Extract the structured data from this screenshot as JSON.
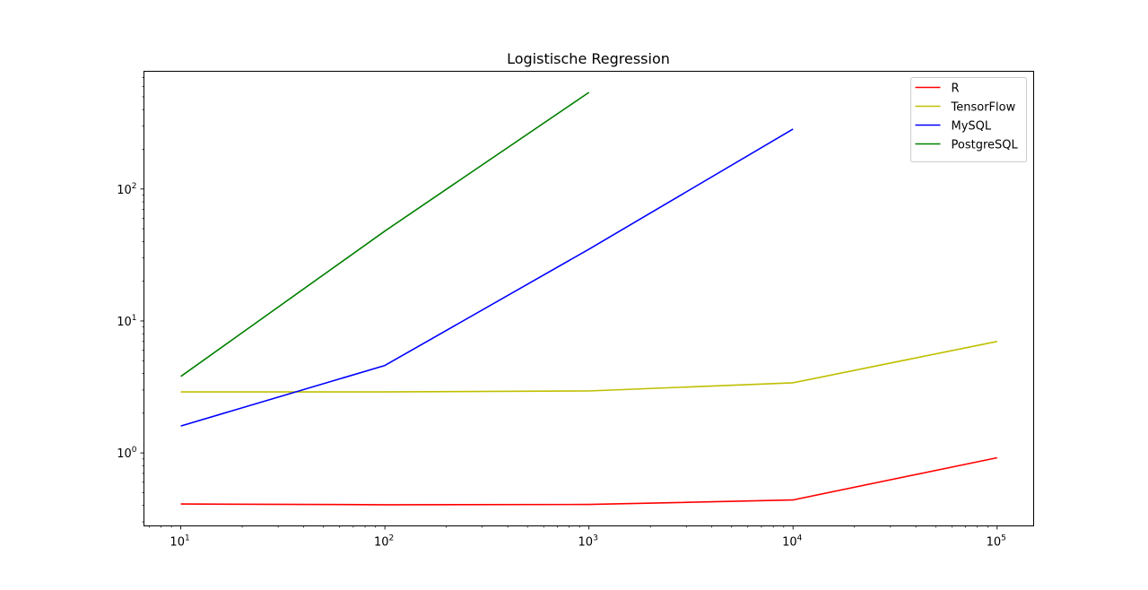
{
  "chart_data": {
    "type": "line",
    "title": "Logistische Regression",
    "xlabel": "",
    "ylabel": "",
    "x_scale": "log",
    "y_scale": "log",
    "xlim": [
      6.6,
      151000
    ],
    "ylim": [
      0.28,
      780
    ],
    "x_ticks": [
      {
        "value": 10,
        "base": "10",
        "exp": "1"
      },
      {
        "value": 100,
        "base": "10",
        "exp": "2"
      },
      {
        "value": 1000,
        "base": "10",
        "exp": "3"
      },
      {
        "value": 10000,
        "base": "10",
        "exp": "4"
      },
      {
        "value": 100000,
        "base": "10",
        "exp": "5"
      }
    ],
    "y_ticks": [
      {
        "value": 1,
        "base": "10",
        "exp": "0"
      },
      {
        "value": 10,
        "base": "10",
        "exp": "1"
      },
      {
        "value": 100,
        "base": "10",
        "exp": "2"
      }
    ],
    "grid": false,
    "legend_position": "top-right",
    "series": [
      {
        "name": "R",
        "color": "#ff0000",
        "x": [
          10,
          100,
          1000,
          10000,
          100000
        ],
        "y": [
          0.41,
          0.405,
          0.407,
          0.44,
          0.92
        ]
      },
      {
        "name": "TensorFlow",
        "color": "#bfbf00",
        "x": [
          10,
          100,
          1000,
          10000,
          100000
        ],
        "y": [
          2.9,
          2.9,
          2.95,
          3.4,
          7.0
        ]
      },
      {
        "name": "MySQL",
        "color": "#0000ff",
        "x": [
          10,
          100,
          1000,
          10000
        ],
        "y": [
          1.6,
          4.6,
          35,
          285
        ]
      },
      {
        "name": "PostgreSQL",
        "color": "#008000",
        "x": [
          10,
          100,
          1000
        ],
        "y": [
          3.8,
          48,
          540
        ]
      }
    ]
  }
}
